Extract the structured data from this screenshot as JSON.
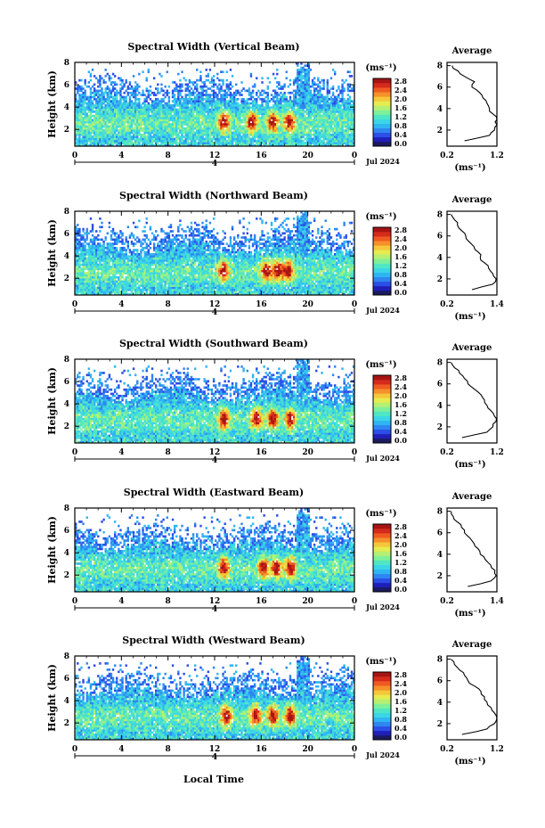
{
  "figure": {
    "x_axis_label": "Local Time",
    "date_label": "Jul 2024",
    "unit_label": "(ms⁻¹)",
    "average_title": "Average",
    "average_xlabel": "(ms⁻¹)",
    "y_axis_label": "Height (km)",
    "colorbar_colors": [
      "#1a1a5e",
      "#1f1fb8",
      "#2b4ee6",
      "#2f86f0",
      "#2fb5f2",
      "#3bd6e6",
      "#4fe6c4",
      "#7ff09a",
      "#b5f073",
      "#e6ec4f",
      "#f5c73a",
      "#f5902a",
      "#ef5a22",
      "#d62a1a",
      "#a61414"
    ],
    "colorbar_ticks": [
      "2.8",
      "2.4",
      "2.0",
      "1.6",
      "1.2",
      "0.8",
      "0.4",
      "0.0"
    ]
  },
  "chart_data": [
    {
      "type": "heatmap",
      "title": "Spectral Width (Vertical Beam)",
      "xlabel": "Local Time",
      "ylabel": "Height (km)",
      "xlim": [
        0,
        24
      ],
      "ylim": [
        0.5,
        8
      ],
      "x_ticks": [
        "0",
        "4",
        "8",
        "12",
        "16",
        "20",
        "0"
      ],
      "y_ticks": [
        "2",
        "4",
        "6",
        "8"
      ],
      "colorbar": {
        "min": 0.0,
        "max": 2.8,
        "ticks": [
          "2.8",
          "2.4",
          "2.0",
          "1.6",
          "1.2",
          "0.8",
          "0.4",
          "0.0"
        ]
      },
      "hotspots_hours": [
        12.8,
        15.2,
        17.0,
        18.4
      ],
      "average": {
        "xlim": [
          0.2,
          1.2
        ],
        "x_ticks": [
          "0.2",
          "1.2"
        ],
        "height_km": [
          1,
          1.5,
          2,
          2.5,
          3,
          3.5,
          4,
          4.5,
          5,
          5.5,
          6,
          6.5,
          7,
          7.5,
          8
        ],
        "width_ms": [
          0.55,
          1.05,
          1.15,
          1.2,
          1.2,
          1.12,
          1.05,
          1.0,
          0.92,
          0.85,
          0.7,
          0.75,
          0.55,
          0.42,
          0.3
        ]
      }
    },
    {
      "type": "heatmap",
      "title": "Spectral Width (Northward Beam)",
      "xlabel": "Local Time",
      "ylabel": "Height (km)",
      "xlim": [
        0,
        24
      ],
      "ylim": [
        0.5,
        8
      ],
      "x_ticks": [
        "0",
        "4",
        "8",
        "12",
        "16",
        "20",
        "0"
      ],
      "y_ticks": [
        "2",
        "4",
        "6",
        "8"
      ],
      "colorbar": {
        "min": 0.0,
        "max": 2.8,
        "ticks": [
          "2.8",
          "2.4",
          "2.0",
          "1.6",
          "1.2",
          "0.8",
          "0.4",
          "0.0"
        ]
      },
      "hotspots_hours": [
        12.8,
        16.4,
        17.4,
        18.3
      ],
      "average": {
        "xlim": [
          0.2,
          1.4
        ],
        "x_ticks": [
          "0.2",
          "1.4"
        ],
        "height_km": [
          1,
          1.5,
          2,
          2.5,
          3,
          3.5,
          4,
          4.5,
          5,
          5.5,
          6,
          6.5,
          7,
          7.5,
          8
        ],
        "width_ms": [
          0.8,
          1.3,
          1.38,
          1.3,
          1.2,
          1.1,
          1.0,
          0.95,
          0.85,
          0.72,
          0.65,
          0.55,
          0.45,
          0.38,
          0.3
        ]
      }
    },
    {
      "type": "heatmap",
      "title": "Spectral Width (Southward Beam)",
      "xlabel": "Local Time",
      "ylabel": "Height (km)",
      "xlim": [
        0,
        24
      ],
      "ylim": [
        0.5,
        8
      ],
      "x_ticks": [
        "0",
        "4",
        "8",
        "12",
        "16",
        "20",
        "0"
      ],
      "y_ticks": [
        "2",
        "4",
        "6",
        "8"
      ],
      "colorbar": {
        "min": 0.0,
        "max": 2.8,
        "ticks": [
          "2.8",
          "2.4",
          "2.0",
          "1.6",
          "1.2",
          "0.8",
          "0.4",
          "0.0"
        ]
      },
      "hotspots_hours": [
        12.8,
        15.6,
        17.0,
        18.5
      ],
      "average": {
        "xlim": [
          0.2,
          1.2
        ],
        "x_ticks": [
          "0.2",
          "1.2"
        ],
        "height_km": [
          1,
          1.5,
          2,
          2.5,
          3,
          3.5,
          4,
          4.5,
          5,
          5.5,
          6,
          6.5,
          7,
          7.5,
          8
        ],
        "width_ms": [
          0.5,
          1.0,
          1.12,
          1.18,
          1.15,
          1.08,
          1.0,
          0.95,
          0.88,
          0.75,
          0.62,
          0.55,
          0.45,
          0.35,
          0.28
        ]
      }
    },
    {
      "type": "heatmap",
      "title": "Spectral Width (Eastward Beam)",
      "xlabel": "Local Time",
      "ylabel": "Height (km)",
      "xlim": [
        0,
        24
      ],
      "ylim": [
        0.5,
        8
      ],
      "x_ticks": [
        "0",
        "4",
        "8",
        "12",
        "16",
        "20",
        "0"
      ],
      "y_ticks": [
        "2",
        "4",
        "6",
        "8"
      ],
      "colorbar": {
        "min": 0.0,
        "max": 2.8,
        "ticks": [
          "2.8",
          "2.4",
          "2.0",
          "1.6",
          "1.2",
          "0.8",
          "0.4",
          "0.0"
        ]
      },
      "hotspots_hours": [
        12.8,
        16.2,
        17.3,
        18.5
      ],
      "average": {
        "xlim": [
          0.2,
          1.4
        ],
        "x_ticks": [
          "0.2",
          "1.4"
        ],
        "height_km": [
          1,
          1.5,
          2,
          2.5,
          3,
          3.5,
          4,
          4.5,
          5,
          5.5,
          6,
          6.5,
          7,
          7.5,
          8
        ],
        "width_ms": [
          0.7,
          1.25,
          1.38,
          1.35,
          1.25,
          1.12,
          1.0,
          0.95,
          0.85,
          0.75,
          0.62,
          0.55,
          0.45,
          0.35,
          0.3
        ]
      }
    },
    {
      "type": "heatmap",
      "title": "Spectral Width (Westward Beam)",
      "xlabel": "Local Time",
      "ylabel": "Height (km)",
      "xlim": [
        0,
        24
      ],
      "ylim": [
        0.5,
        8
      ],
      "x_ticks": [
        "0",
        "4",
        "8",
        "12",
        "16",
        "20",
        "0"
      ],
      "y_ticks": [
        "2",
        "4",
        "6",
        "8"
      ],
      "colorbar": {
        "min": 0.0,
        "max": 2.8,
        "ticks": [
          "2.8",
          "2.4",
          "2.0",
          "1.6",
          "1.2",
          "0.8",
          "0.4",
          "0.0"
        ]
      },
      "hotspots_hours": [
        13.0,
        15.5,
        17.0,
        18.5
      ],
      "average": {
        "xlim": [
          0.2,
          1.2
        ],
        "x_ticks": [
          "0.2",
          "1.2"
        ],
        "height_km": [
          1,
          1.5,
          2,
          2.5,
          3,
          3.5,
          4,
          4.5,
          5,
          5.5,
          6,
          6.5,
          7,
          7.5,
          8
        ],
        "width_ms": [
          0.5,
          1.0,
          1.15,
          1.2,
          1.15,
          1.08,
          1.0,
          0.95,
          0.88,
          0.75,
          0.62,
          0.55,
          0.45,
          0.35,
          0.28
        ]
      }
    }
  ]
}
